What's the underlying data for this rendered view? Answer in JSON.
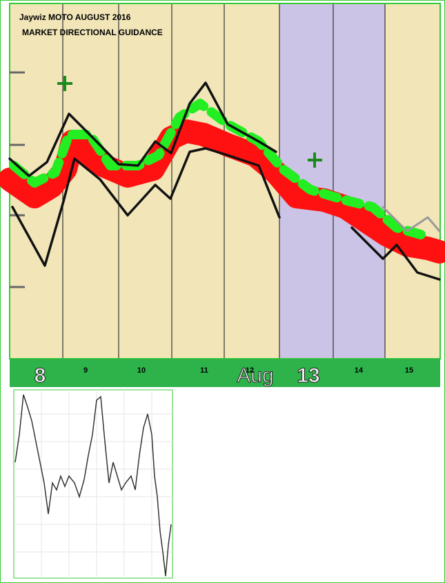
{
  "header": {
    "title": "Jaywiz MOTO AUGUST 2016",
    "subtitle": "MARKET DIRECTIONAL GUIDANCE"
  },
  "month": "Aug",
  "days": [
    "8",
    "9",
    "10",
    "11",
    "12",
    "13",
    "14",
    "15"
  ]
}
